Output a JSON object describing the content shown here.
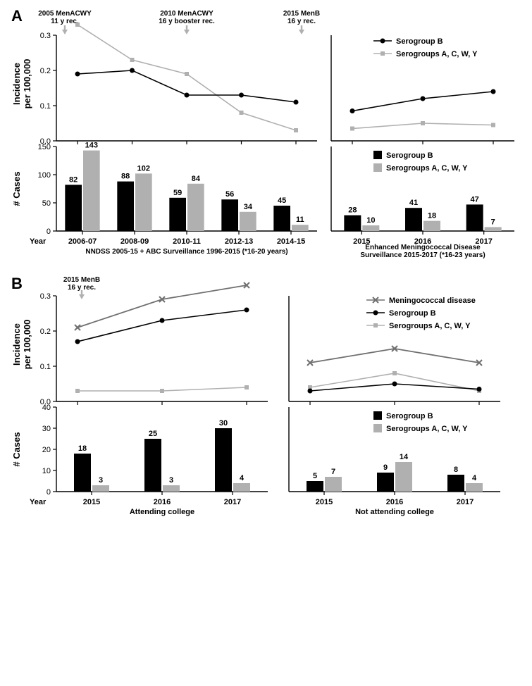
{
  "colors": {
    "serogroup_b": "#000000",
    "serogroups_acwy": "#b0b0b0",
    "meningococcal": "#707070",
    "annot_arrow": "#b0b0b0",
    "bg": "#ffffff"
  },
  "panelA": {
    "label": "A",
    "annotations": [
      {
        "line1": "2005 MenACWY",
        "line2": "11 y rec."
      },
      {
        "line1": "2010 MenACWY",
        "line2": "16 y booster rec."
      },
      {
        "line1": "2015 MenB",
        "line2": "16 y rec."
      }
    ],
    "legend_top": [
      "Serogroup B",
      "Serogroups A, C, W, Y"
    ],
    "legend_bottom": [
      "Serogroup B",
      "Serogroups A, C, W, Y"
    ],
    "y_title_top": "Incidence\nper 100,000",
    "y_title_bottom": "# Cases",
    "x_title": "Year",
    "left": {
      "caption": "NNDSS 2005-15 + ABC Surveillance 1996-2015 (*16-20 years)",
      "categories": [
        "2006-07",
        "2008-09",
        "2010-11",
        "2012-13",
        "2014-15"
      ],
      "incidence": {
        "ylim": [
          0.0,
          0.3
        ],
        "yticks": [
          0.0,
          0.1,
          0.2,
          0.3
        ],
        "serogroup_b": [
          0.19,
          0.2,
          0.13,
          0.13,
          0.11
        ],
        "serogroups_acwy": [
          0.33,
          0.23,
          0.19,
          0.08,
          0.03
        ]
      },
      "cases": {
        "ylim": [
          0,
          150
        ],
        "yticks": [
          0,
          50,
          100,
          150
        ],
        "serogroup_b": [
          82,
          88,
          59,
          56,
          45
        ],
        "serogroups_acwy": [
          143,
          102,
          84,
          34,
          11
        ],
        "labels_b": [
          "82",
          "88",
          "59",
          "56",
          "45"
        ],
        "labels_acwy": [
          "143",
          "102",
          "84",
          "34",
          "11"
        ]
      }
    },
    "right": {
      "caption": "Enhanced Meningococcal Disease\nSurveillance 2015-2017 (*16-23 years)",
      "categories": [
        "2015",
        "2016",
        "2017"
      ],
      "incidence": {
        "ylim": [
          0.0,
          0.3
        ],
        "yticks": [
          0.0,
          0.1,
          0.2,
          0.3
        ],
        "serogroup_b": [
          0.085,
          0.12,
          0.14
        ],
        "serogroups_acwy": [
          0.035,
          0.05,
          0.045
        ]
      },
      "cases": {
        "ylim": [
          0,
          150
        ],
        "yticks": [
          0,
          50,
          100,
          150
        ],
        "serogroup_b": [
          28,
          41,
          47
        ],
        "serogroups_acwy": [
          10,
          18,
          7
        ],
        "labels_b": [
          "28",
          "41",
          "47"
        ],
        "labels_acwy": [
          "10",
          "18",
          "7"
        ]
      }
    }
  },
  "panelB": {
    "label": "B",
    "annotation": {
      "line1": "2015 MenB",
      "line2": "16 y rec."
    },
    "legend_top": [
      "Meningococcal disease",
      "Serogroup B",
      "Serogroups A, C, W, Y"
    ],
    "legend_bottom": [
      "Serogroup B",
      "Serogroups A, C, W, Y"
    ],
    "y_title_top": "Incidence\nper 100,000",
    "y_title_bottom": "# Cases",
    "x_title": "Year",
    "left": {
      "caption": "Attending college",
      "categories": [
        "2015",
        "2016",
        "2017"
      ],
      "incidence": {
        "ylim": [
          0.0,
          0.3
        ],
        "yticks": [
          0.0,
          0.1,
          0.2,
          0.3
        ],
        "meningococcal": [
          0.21,
          0.29,
          0.33
        ],
        "serogroup_b": [
          0.17,
          0.23,
          0.26
        ],
        "serogroups_acwy": [
          0.03,
          0.03,
          0.04
        ]
      },
      "cases": {
        "ylim": [
          0,
          40
        ],
        "yticks": [
          0,
          10,
          20,
          30,
          40
        ],
        "serogroup_b": [
          18,
          25,
          30
        ],
        "serogroups_acwy": [
          3,
          3,
          4
        ],
        "labels_b": [
          "18",
          "25",
          "30"
        ],
        "labels_acwy": [
          "3",
          "3",
          "4"
        ]
      }
    },
    "right": {
      "caption": "Not attending college",
      "categories": [
        "2015",
        "2016",
        "2017"
      ],
      "incidence": {
        "ylim": [
          0.0,
          0.3
        ],
        "yticks": [
          0.0,
          0.1,
          0.2,
          0.3
        ],
        "meningococcal": [
          0.11,
          0.15,
          0.11
        ],
        "serogroup_b": [
          0.03,
          0.05,
          0.035
        ],
        "serogroups_acwy": [
          0.04,
          0.08,
          0.03
        ]
      },
      "cases": {
        "ylim": [
          0,
          40
        ],
        "yticks": [
          0,
          10,
          20,
          30,
          40
        ],
        "serogroup_b": [
          5,
          9,
          8
        ],
        "serogroups_acwy": [
          7,
          14,
          4
        ],
        "labels_b": [
          "5",
          "9",
          "8"
        ],
        "labels_acwy": [
          "7",
          "14",
          "4"
        ]
      }
    }
  }
}
